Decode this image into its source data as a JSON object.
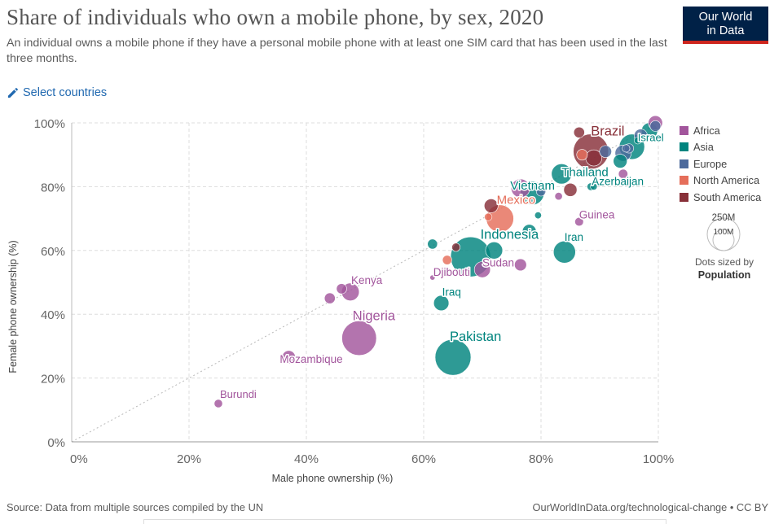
{
  "header": {
    "title": "Share of individuals who own a mobile phone, by sex, 2020",
    "subtitle": "An individual owns a mobile phone if they have a personal mobile phone with at least one SIM card that has been used in the last three months.",
    "logo_line1": "Our World",
    "logo_line2": "in Data"
  },
  "controls": {
    "select_countries": "Select countries"
  },
  "legend": {
    "items": [
      {
        "label": "Africa",
        "color": "#a2559c"
      },
      {
        "label": "Asia",
        "color": "#00847e"
      },
      {
        "label": "Europe",
        "color": "#4c6a9c"
      },
      {
        "label": "North America",
        "color": "#e56e5a"
      },
      {
        "label": "South America",
        "color": "#883039"
      }
    ],
    "size_large": "250M",
    "size_small": "100M",
    "size_note": "Dots sized by",
    "size_var": "Population"
  },
  "footer": {
    "source": "Source: Data from multiple sources compiled by the UN",
    "link": "OurWorldInData.org/technological-change • CC BY"
  },
  "chart_data": {
    "type": "scatter",
    "xlabel": "Male phone ownership (%)",
    "ylabel": "Female phone ownership (%)",
    "xlim": [
      0,
      100
    ],
    "ylim": [
      0,
      100
    ],
    "xticks": [
      "0%",
      "20%",
      "40%",
      "60%",
      "80%",
      "100%"
    ],
    "yticks": [
      "0%",
      "20%",
      "40%",
      "60%",
      "80%",
      "100%"
    ],
    "grid": true,
    "reference_line": "y = x",
    "size_by": "Population",
    "points": [
      {
        "label": "Burundi",
        "region": "Africa",
        "x": 25,
        "y": 12,
        "pop": 12
      },
      {
        "label": "Mozambique",
        "region": "Africa",
        "x": 37,
        "y": 26.5,
        "pop": 31
      },
      {
        "label": "Nigeria",
        "region": "Africa",
        "x": 49,
        "y": 32.5,
        "pop": 206
      },
      {
        "label": "Pakistan",
        "region": "Asia",
        "x": 65,
        "y": 26.5,
        "pop": 221
      },
      {
        "label": "Kenya",
        "region": "Africa",
        "x": 47.5,
        "y": 47,
        "pop": 54
      },
      {
        "label": "Iraq",
        "region": "Asia",
        "x": 63,
        "y": 43.5,
        "pop": 40
      },
      {
        "label": "Djibouti",
        "region": "Africa",
        "x": 61.5,
        "y": 51.5,
        "pop": 1
      },
      {
        "label": "Sudan",
        "region": "Africa",
        "x": 70,
        "y": 54,
        "pop": 44
      },
      {
        "label": "Indonesia",
        "region": "Asia",
        "x": 68,
        "y": 58,
        "pop": 274
      },
      {
        "label": "Iran",
        "region": "Asia",
        "x": 84,
        "y": 59.5,
        "pop": 84
      },
      {
        "label": "Mexico",
        "region": "North America",
        "x": 73,
        "y": 70,
        "pop": 129
      },
      {
        "label": "Guinea",
        "region": "Africa",
        "x": 86.5,
        "y": 69,
        "pop": 13
      },
      {
        "label": "Vietnam",
        "region": "Asia",
        "x": 78.5,
        "y": 78,
        "pop": 97
      },
      {
        "label": "Azerbaijan",
        "region": "Asia",
        "x": 88.5,
        "y": 80,
        "pop": 10
      },
      {
        "label": "Thailand",
        "region": "Asia",
        "x": 83.5,
        "y": 84,
        "pop": 70
      },
      {
        "label": "Brazil",
        "region": "South America",
        "x": 88.5,
        "y": 91,
        "pop": 213
      },
      {
        "label": "Israel",
        "region": "Asia",
        "x": 96.5,
        "y": 94.5,
        "pop": 9
      },
      {
        "label": "",
        "region": "Africa",
        "x": 44,
        "y": 45,
        "pop": 20
      },
      {
        "label": "",
        "region": "Africa",
        "x": 46,
        "y": 48,
        "pop": 18
      },
      {
        "label": "",
        "region": "Africa",
        "x": 48.5,
        "y": 39.5,
        "pop": 8
      },
      {
        "label": "",
        "region": "Africa",
        "x": 76.5,
        "y": 55.5,
        "pop": 25
      },
      {
        "label": "",
        "region": "Africa",
        "x": 76.5,
        "y": 79.5,
        "pop": 60
      },
      {
        "label": "",
        "region": "Africa",
        "x": 83,
        "y": 77,
        "pop": 10
      },
      {
        "label": "",
        "region": "Africa",
        "x": 94,
        "y": 84,
        "pop": 15
      },
      {
        "label": "",
        "region": "Africa",
        "x": 99.5,
        "y": 100,
        "pop": 35
      },
      {
        "label": "",
        "region": "Asia",
        "x": 61.5,
        "y": 62,
        "pop": 17
      },
      {
        "label": "",
        "region": "Asia",
        "x": 72,
        "y": 60,
        "pop": 50
      },
      {
        "label": "",
        "region": "Asia",
        "x": 78,
        "y": 66,
        "pop": 33
      },
      {
        "label": "",
        "region": "Asia",
        "x": 79.5,
        "y": 71,
        "pop": 8
      },
      {
        "label": "",
        "region": "Asia",
        "x": 89,
        "y": 80,
        "pop": 8
      },
      {
        "label": "",
        "region": "Asia",
        "x": 93.5,
        "y": 88,
        "pop": 33
      },
      {
        "label": "",
        "region": "Asia",
        "x": 95.5,
        "y": 92.5,
        "pop": 110
      },
      {
        "label": "",
        "region": "Asia",
        "x": 98.5,
        "y": 97.5,
        "pop": 45
      },
      {
        "label": "",
        "region": "Europe",
        "x": 80,
        "y": 78.5,
        "pop": 15
      },
      {
        "label": "",
        "region": "Europe",
        "x": 91,
        "y": 91,
        "pop": 25
      },
      {
        "label": "",
        "region": "Europe",
        "x": 94,
        "y": 90.5,
        "pop": 45
      },
      {
        "label": "",
        "region": "Europe",
        "x": 95,
        "y": 92,
        "pop": 15
      },
      {
        "label": "",
        "region": "Europe",
        "x": 97,
        "y": 96,
        "pop": 30
      },
      {
        "label": "",
        "region": "Europe",
        "x": 99.5,
        "y": 99,
        "pop": 20
      },
      {
        "label": "",
        "region": "Europe",
        "x": 94.5,
        "y": 92,
        "pop": 10
      },
      {
        "label": "",
        "region": "North America",
        "x": 64,
        "y": 57,
        "pop": 15
      },
      {
        "label": "",
        "region": "North America",
        "x": 71,
        "y": 70.5,
        "pop": 10
      },
      {
        "label": "",
        "region": "North America",
        "x": 87,
        "y": 90,
        "pop": 20
      },
      {
        "label": "",
        "region": "South America",
        "x": 65.5,
        "y": 61,
        "pop": 12
      },
      {
        "label": "",
        "region": "South America",
        "x": 71.5,
        "y": 74,
        "pop": 33
      },
      {
        "label": "",
        "region": "South America",
        "x": 85,
        "y": 79,
        "pop": 30
      },
      {
        "label": "",
        "region": "South America",
        "x": 86.5,
        "y": 97,
        "pop": 20
      },
      {
        "label": "",
        "region": "South America",
        "x": 89,
        "y": 89,
        "pop": 45
      }
    ]
  }
}
